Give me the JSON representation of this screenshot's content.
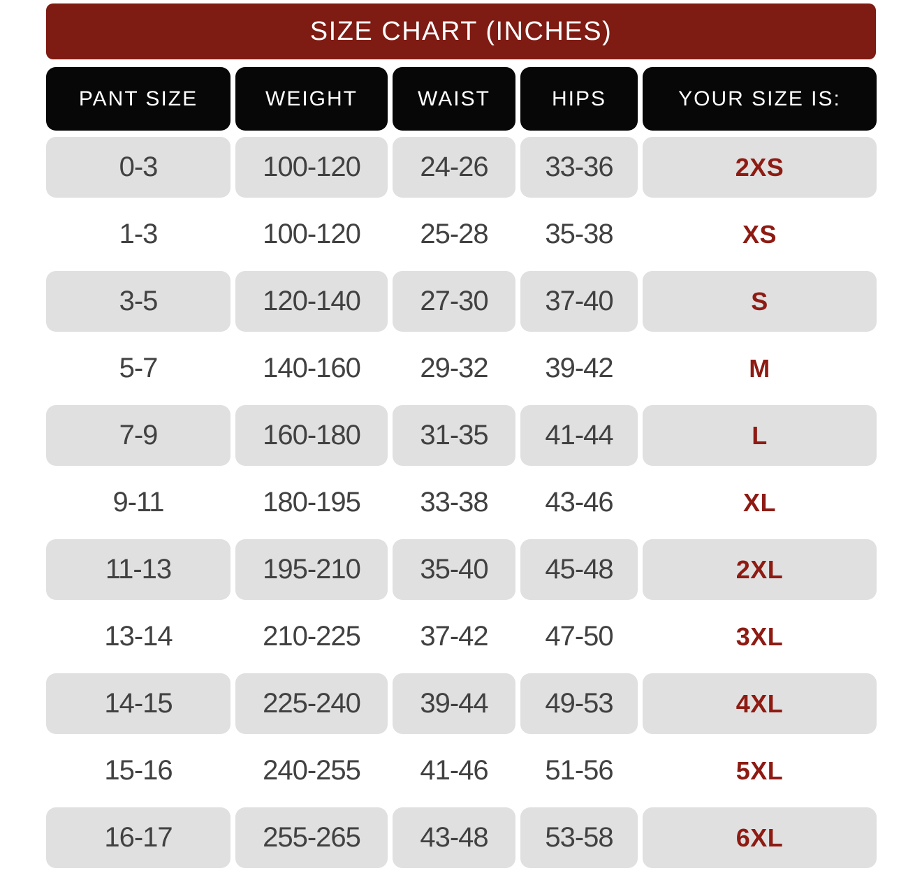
{
  "title_bar": {
    "label": "SIZE CHART (INCHES)"
  },
  "colors": {
    "banner": "#7E1B12",
    "header_bg": "#070707",
    "alt_row_bg": "#E0E0E0",
    "data_text": "#414141",
    "size_text": "#8E1B13",
    "page_bg": "#FFFFFF"
  },
  "chart_data": {
    "type": "table",
    "title": "SIZE CHART (INCHES)",
    "columns": [
      "PANT SIZE",
      "WEIGHT",
      "WAIST",
      "HIPS",
      "YOUR SIZE IS:"
    ],
    "column_keys": [
      "pant-size",
      "weight",
      "waist",
      "hips",
      "your-size-is"
    ],
    "rows": [
      [
        "0-3",
        "100-120",
        "24-26",
        "33-36",
        "2XS"
      ],
      [
        "1-3",
        "100-120",
        "25-28",
        "35-38",
        "XS"
      ],
      [
        "3-5",
        "120-140",
        "27-30",
        "37-40",
        "S"
      ],
      [
        "5-7",
        "140-160",
        "29-32",
        "39-42",
        "M"
      ],
      [
        "7-9",
        "160-180",
        "31-35",
        "41-44",
        "L"
      ],
      [
        "9-11",
        "180-195",
        "33-38",
        "43-46",
        "XL"
      ],
      [
        "11-13",
        "195-210",
        "35-40",
        "45-48",
        "2XL"
      ],
      [
        "13-14",
        "210-225",
        "37-42",
        "47-50",
        "3XL"
      ],
      [
        "14-15",
        "225-240",
        "39-44",
        "49-53",
        "4XL"
      ],
      [
        "15-16",
        "240-255",
        "41-46",
        "51-56",
        "5XL"
      ],
      [
        "16-17",
        "255-265",
        "43-48",
        "53-58",
        "6XL"
      ]
    ]
  }
}
